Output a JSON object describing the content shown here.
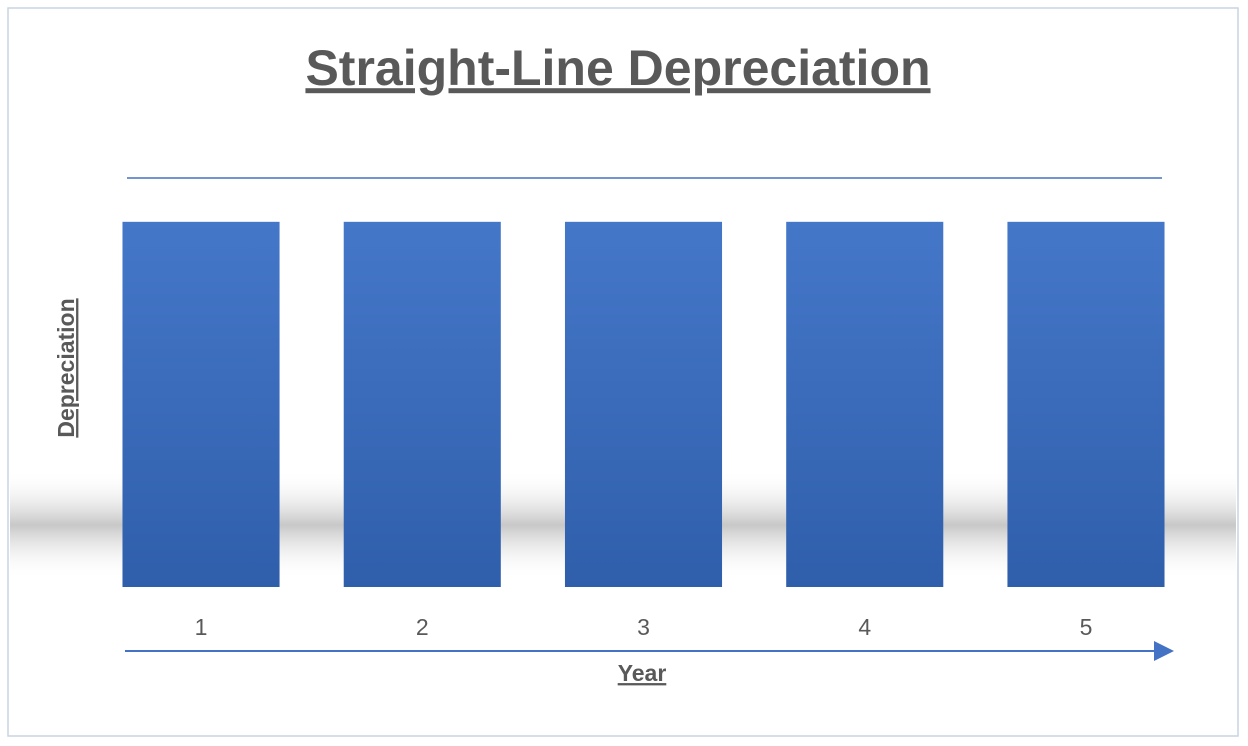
{
  "chart_data": {
    "type": "bar",
    "title": "Straight-Line Depreciation",
    "x_label": "Year",
    "y_label": "Depreciation",
    "categories": [
      "1",
      "2",
      "3",
      "4",
      "5"
    ],
    "values": [
      1,
      1,
      1,
      1,
      1
    ],
    "color": "#4472c4",
    "ylim": [
      0,
      1.12
    ]
  }
}
